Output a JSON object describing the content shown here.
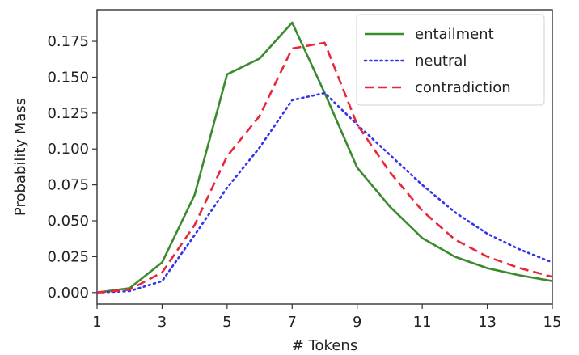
{
  "chart_data": {
    "type": "line",
    "title": "",
    "xlabel": "# Tokens",
    "ylabel": "Probability Mass",
    "xlim": [
      1,
      15
    ],
    "ylim": [
      -0.008,
      0.197
    ],
    "xticks": [
      1,
      3,
      5,
      7,
      9,
      11,
      13,
      15
    ],
    "xtick_labels": [
      "1",
      "3",
      "5",
      "7",
      "9",
      "11",
      "13",
      "15"
    ],
    "yticks": [
      0,
      0.025,
      0.05,
      0.075,
      0.1,
      0.125,
      0.15,
      0.175
    ],
    "ytick_labels": [
      "0.000",
      "0.025",
      "0.050",
      "0.075",
      "0.100",
      "0.125",
      "0.150",
      "0.175"
    ],
    "grid": false,
    "legend_position": "top-right",
    "x": [
      1,
      2,
      3,
      4,
      5,
      6,
      7,
      8,
      9,
      10,
      11,
      12,
      13,
      14,
      15
    ],
    "series": [
      {
        "name": "entailment",
        "color": "#3a8a2e",
        "dash": "solid",
        "values": [
          0.0,
          0.003,
          0.021,
          0.068,
          0.152,
          0.163,
          0.188,
          0.139,
          0.087,
          0.06,
          0.038,
          0.025,
          0.017,
          0.012,
          0.008
        ]
      },
      {
        "name": "neutral",
        "color": "#3333ee",
        "dash": "dotted",
        "values": [
          0.0,
          0.001,
          0.008,
          0.04,
          0.073,
          0.101,
          0.134,
          0.139,
          0.117,
          0.096,
          0.075,
          0.056,
          0.041,
          0.03,
          0.021
        ]
      },
      {
        "name": "contradiction",
        "color": "#e8283a",
        "dash": "dashed",
        "values": [
          0.0,
          0.002,
          0.014,
          0.047,
          0.095,
          0.123,
          0.17,
          0.174,
          0.117,
          0.084,
          0.057,
          0.037,
          0.025,
          0.017,
          0.011
        ]
      }
    ]
  }
}
